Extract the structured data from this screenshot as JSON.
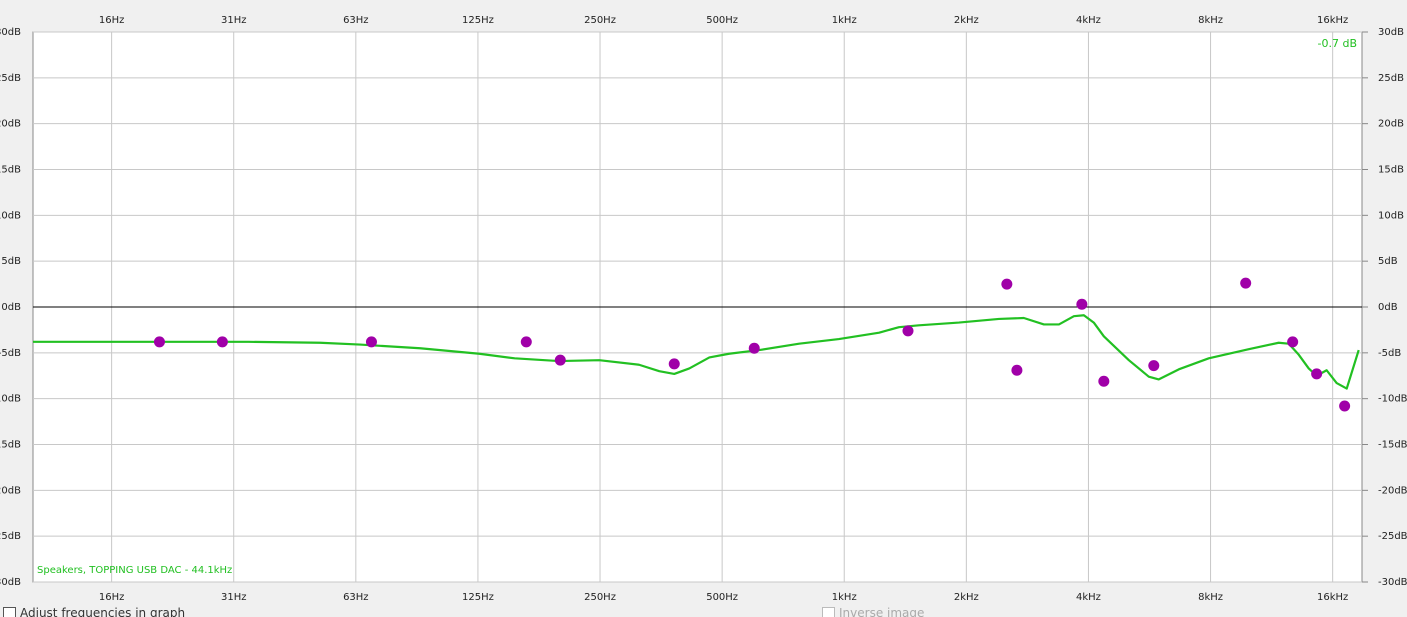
{
  "chart_data": {
    "type": "line",
    "xscale": "log",
    "xlim": [
      10,
      18900
    ],
    "ylim": [
      -30,
      30
    ],
    "xticks": [
      {
        "value": 15.625,
        "label": "16Hz"
      },
      {
        "value": 31.25,
        "label": "31Hz"
      },
      {
        "value": 62.5,
        "label": "63Hz"
      },
      {
        "value": 125,
        "label": "125Hz"
      },
      {
        "value": 250,
        "label": "250Hz"
      },
      {
        "value": 500,
        "label": "500Hz"
      },
      {
        "value": 1000,
        "label": "1kHz"
      },
      {
        "value": 2000,
        "label": "2kHz"
      },
      {
        "value": 4000,
        "label": "4kHz"
      },
      {
        "value": 8000,
        "label": "8kHz"
      },
      {
        "value": 16000,
        "label": "16kHz"
      }
    ],
    "yticks": [
      {
        "value": 30,
        "label": "30dB"
      },
      {
        "value": 25,
        "label": "25dB"
      },
      {
        "value": 20,
        "label": "20dB"
      },
      {
        "value": 15,
        "label": "15dB"
      },
      {
        "value": 10,
        "label": "10dB"
      },
      {
        "value": 5,
        "label": "5dB"
      },
      {
        "value": 0,
        "label": "0dB"
      },
      {
        "value": -5,
        "label": "-5dB"
      },
      {
        "value": -10,
        "label": "-10dB"
      },
      {
        "value": -15,
        "label": "-15dB"
      },
      {
        "value": -20,
        "label": "-20dB"
      },
      {
        "value": -25,
        "label": "-25dB"
      },
      {
        "value": -30,
        "label": "-30dB"
      }
    ],
    "grid": true,
    "annotation": "-0.7 dB",
    "series": [
      {
        "name": "Speakers, TOPPING USB DAC - 44.1kHz",
        "type": "line",
        "color": "#22c022",
        "x": [
          10,
          34,
          51,
          64,
          90,
          126,
          154,
          198,
          249,
          312,
          350,
          381,
          415,
          465,
          520,
          617,
          774,
          970,
          1219,
          1364,
          1528,
          1917,
          2406,
          2772,
          3106,
          3383,
          3683,
          3897,
          4123,
          4365,
          5031,
          5634,
          5962,
          6681,
          7919,
          9938,
          11778,
          12466,
          13195,
          13967,
          14610,
          15464,
          16370,
          17330,
          18550
        ],
        "values": [
          -3.8,
          -3.8,
          -3.9,
          -4.1,
          -4.5,
          -5.1,
          -5.6,
          -5.9,
          -5.8,
          -6.3,
          -7.0,
          -7.3,
          -6.7,
          -5.5,
          -5.1,
          -4.7,
          -4.0,
          -3.5,
          -2.8,
          -2.2,
          -2.0,
          -1.7,
          -1.3,
          -1.2,
          -1.9,
          -1.9,
          -1.0,
          -0.9,
          -1.7,
          -3.2,
          -5.8,
          -7.6,
          -7.9,
          -6.8,
          -5.6,
          -4.6,
          -3.9,
          -4.0,
          -5.2,
          -6.7,
          -7.5,
          -6.9,
          -8.3,
          -8.9,
          -4.7
        ]
      },
      {
        "type": "scatter",
        "color": "#a000a8",
        "x": [
          20.5,
          29.3,
          68.3,
          164.5,
          199.5,
          381,
          600,
          1436,
          2517,
          2665,
          3853,
          4365,
          5796,
          9766,
          12750,
          14610,
          17125
        ],
        "values": [
          -3.8,
          -3.8,
          -3.8,
          -3.8,
          -5.8,
          -6.2,
          -4.5,
          -2.6,
          2.5,
          -6.9,
          0.3,
          -8.1,
          -6.4,
          2.6,
          -3.8,
          -7.3,
          -10.8
        ]
      }
    ]
  },
  "controls": [
    "Adjust frequencies in graph",
    "Inverse image"
  ]
}
